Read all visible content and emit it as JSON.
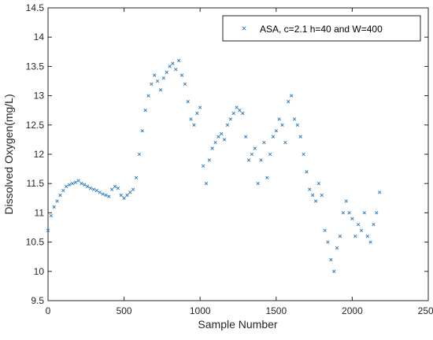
{
  "chart_data": {
    "type": "scatter",
    "title": "",
    "xlabel": "Sample Number",
    "ylabel": "Dissolved Oxygen(mg/L)",
    "xlim": [
      0,
      2500
    ],
    "ylim": [
      9.5,
      14.5
    ],
    "xticks": [
      0,
      500,
      1000,
      1500,
      2000,
      2500
    ],
    "yticks": [
      9.5,
      10,
      10.5,
      11,
      11.5,
      12,
      12.5,
      13,
      13.5,
      14,
      14.5
    ],
    "xtick_labels": [
      "0",
      "500",
      "1000",
      "1500",
      "2000",
      "2500"
    ],
    "ytick_labels": [
      "9.5",
      "10",
      "10.5",
      "11",
      "11.5",
      "12",
      "12.5",
      "13",
      "13.5",
      "14",
      "14.5"
    ],
    "grid": false,
    "legend_position": "top-right",
    "marker": "x",
    "color": "#2f7fbf",
    "series": [
      {
        "name": "ASA, c=2.1 h=40 and W=400",
        "x": [
          0,
          20,
          40,
          60,
          80,
          100,
          120,
          140,
          160,
          180,
          200,
          220,
          240,
          260,
          280,
          300,
          320,
          340,
          360,
          380,
          400,
          420,
          440,
          460,
          480,
          500,
          520,
          540,
          560,
          580,
          600,
          620,
          640,
          660,
          680,
          700,
          720,
          740,
          760,
          780,
          800,
          820,
          840,
          860,
          880,
          900,
          920,
          940,
          960,
          980,
          1000,
          1020,
          1040,
          1060,
          1080,
          1100,
          1120,
          1140,
          1160,
          1180,
          1200,
          1220,
          1240,
          1260,
          1280,
          1300,
          1320,
          1340,
          1360,
          1380,
          1400,
          1420,
          1440,
          1460,
          1480,
          1500,
          1520,
          1540,
          1560,
          1580,
          1600,
          1620,
          1640,
          1660,
          1680,
          1700,
          1720,
          1740,
          1760,
          1780,
          1800,
          1820,
          1840,
          1860,
          1880,
          1900,
          1920,
          1940,
          1960,
          1980,
          2000,
          2020,
          2040,
          2060,
          2080,
          2100,
          2120,
          2140,
          2160,
          2180
        ],
        "y": [
          10.7,
          10.95,
          11.1,
          11.2,
          11.3,
          11.38,
          11.45,
          11.48,
          11.5,
          11.52,
          11.55,
          11.5,
          11.48,
          11.45,
          11.42,
          11.4,
          11.38,
          11.35,
          11.32,
          11.3,
          11.28,
          11.4,
          11.45,
          11.42,
          11.3,
          11.25,
          11.3,
          11.35,
          11.4,
          11.6,
          12.0,
          12.4,
          12.75,
          13.0,
          13.2,
          13.35,
          13.25,
          13.1,
          13.3,
          13.4,
          13.5,
          13.55,
          13.45,
          13.6,
          13.35,
          13.2,
          12.9,
          12.6,
          12.5,
          12.7,
          12.8,
          11.8,
          11.5,
          11.9,
          12.1,
          12.2,
          12.3,
          12.35,
          12.25,
          12.5,
          12.6,
          12.7,
          12.8,
          12.75,
          12.7,
          12.3,
          11.9,
          12.0,
          12.1,
          11.5,
          11.9,
          12.2,
          11.6,
          12.0,
          12.3,
          12.4,
          12.6,
          12.5,
          12.2,
          12.9,
          13.0,
          12.6,
          12.5,
          12.3,
          12.0,
          11.7,
          11.4,
          11.3,
          11.2,
          11.5,
          11.3,
          10.7,
          10.5,
          10.2,
          10.0,
          10.4,
          10.6,
          11.0,
          11.2,
          11.0,
          10.9,
          10.6,
          10.8,
          10.7,
          11.0,
          10.6,
          10.5,
          10.8,
          11.0,
          11.35
        ]
      }
    ]
  }
}
